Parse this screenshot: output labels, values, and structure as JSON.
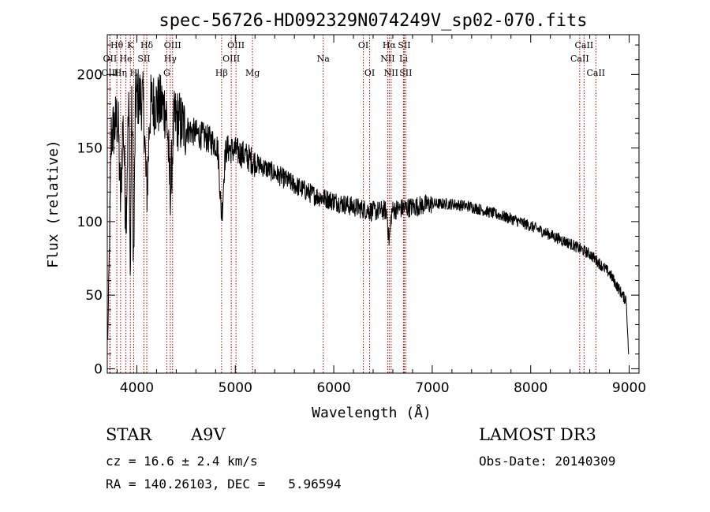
{
  "chart_data": {
    "type": "line",
    "title": "spec-56726-HD092329N074249V_sp02-070.fits",
    "xlabel": "Wavelength (Å)",
    "ylabel": "Flux (relative)",
    "xlim": [
      3700,
      9100
    ],
    "ylim": [
      -3,
      227
    ],
    "xticks": [
      4000,
      5000,
      6000,
      7000,
      8000,
      9000
    ],
    "yticks": [
      0,
      50,
      100,
      150,
      200
    ],
    "x_tick_labels": [
      "4000",
      "5000",
      "6000",
      "7000",
      "8000",
      "9000"
    ],
    "y_tick_labels": [
      "0",
      "50",
      "100",
      "150",
      "200"
    ],
    "series": [
      {
        "name": "spectrum",
        "continuum": [
          [
            3700,
            150
          ],
          [
            3800,
            170
          ],
          [
            3900,
            185
          ],
          [
            4000,
            185
          ],
          [
            4100,
            182
          ],
          [
            4200,
            180
          ],
          [
            4300,
            177
          ],
          [
            4400,
            170
          ],
          [
            4500,
            163
          ],
          [
            4600,
            160
          ],
          [
            4700,
            157
          ],
          [
            4800,
            153
          ],
          [
            4900,
            150
          ],
          [
            5000,
            148
          ],
          [
            5100,
            145
          ],
          [
            5200,
            140
          ],
          [
            5400,
            133
          ],
          [
            5600,
            125
          ],
          [
            5800,
            118
          ],
          [
            6000,
            114
          ],
          [
            6200,
            110
          ],
          [
            6400,
            107
          ],
          [
            6600,
            108
          ],
          [
            6800,
            110
          ],
          [
            7000,
            112
          ],
          [
            7200,
            112
          ],
          [
            7400,
            110
          ],
          [
            7600,
            106
          ],
          [
            7800,
            102
          ],
          [
            8000,
            97
          ],
          [
            8200,
            91
          ],
          [
            8400,
            85
          ],
          [
            8600,
            78
          ],
          [
            8800,
            65
          ],
          [
            8950,
            48
          ]
        ],
        "absorption_lines": [
          {
            "center": 3835,
            "depth": 60,
            "width": 12
          },
          {
            "center": 3889,
            "depth": 75,
            "width": 14
          },
          {
            "center": 3934,
            "depth": 120,
            "width": 6
          },
          {
            "center": 3968,
            "depth": 110,
            "width": 8
          },
          {
            "center": 4101,
            "depth": 60,
            "width": 16
          },
          {
            "center": 4340,
            "depth": 50,
            "width": 18
          },
          {
            "center": 4861,
            "depth": 45,
            "width": 18
          },
          {
            "center": 6563,
            "depth": 20,
            "width": 12
          }
        ]
      }
    ],
    "spectral_lines": [
      {
        "label": "Hθ",
        "wavelength": 3797,
        "row": 0
      },
      {
        "label": "OII",
        "wavelength": 3727,
        "row": 1
      },
      {
        "label": "OIII",
        "wavelength": 3727,
        "row": 2
      },
      {
        "label": "Hη",
        "wavelength": 3835,
        "row": 2
      },
      {
        "label": "He",
        "wavelength": 3889,
        "row": 1
      },
      {
        "label": "K",
        "wavelength": 3934,
        "row": 0
      },
      {
        "label": "H",
        "wavelength": 3968,
        "row": 2
      },
      {
        "label": "Hδ",
        "wavelength": 4101,
        "row": 0
      },
      {
        "label": "SII",
        "wavelength": 4072,
        "row": 1
      },
      {
        "label": "OIII",
        "wavelength": 4363,
        "row": 0
      },
      {
        "label": "Hγ",
        "wavelength": 4340,
        "row": 1
      },
      {
        "label": "G",
        "wavelength": 4304,
        "row": 2
      },
      {
        "label": "Hβ",
        "wavelength": 4861,
        "row": 2
      },
      {
        "label": "OIII",
        "wavelength": 5007,
        "row": 0
      },
      {
        "label": "OIII",
        "wavelength": 4959,
        "row": 1
      },
      {
        "label": "Mg",
        "wavelength": 5175,
        "row": 2
      },
      {
        "label": "Na",
        "wavelength": 5893,
        "row": 1
      },
      {
        "label": "OI",
        "wavelength": 6300,
        "row": 0
      },
      {
        "label": "OI",
        "wavelength": 6364,
        "row": 2
      },
      {
        "label": "Hα",
        "wavelength": 6563,
        "row": 0
      },
      {
        "label": "NII",
        "wavelength": 6548,
        "row": 1
      },
      {
        "label": "NII",
        "wavelength": 6583,
        "row": 2
      },
      {
        "label": "SII",
        "wavelength": 6716,
        "row": 0
      },
      {
        "label": "Li",
        "wavelength": 6708,
        "row": 1
      },
      {
        "label": "SII",
        "wavelength": 6731,
        "row": 2
      },
      {
        "label": "CaII",
        "wavelength": 8542,
        "row": 0
      },
      {
        "label": "CaII",
        "wavelength": 8498,
        "row": 1
      },
      {
        "label": "CaII",
        "wavelength": 8662,
        "row": 2
      }
    ]
  },
  "info": {
    "object_class": "STAR",
    "subclass": "A9V",
    "survey": "LAMOST DR3",
    "redshift": "cz = 16.6 ± 2.4 km/s",
    "obs_date": "Obs-Date: 20140309",
    "coords": "RA = 140.26103, DEC =   5.96594"
  },
  "colors": {
    "spectrum": "#000000",
    "line_markers": "#b40000",
    "axes": "#000000"
  }
}
